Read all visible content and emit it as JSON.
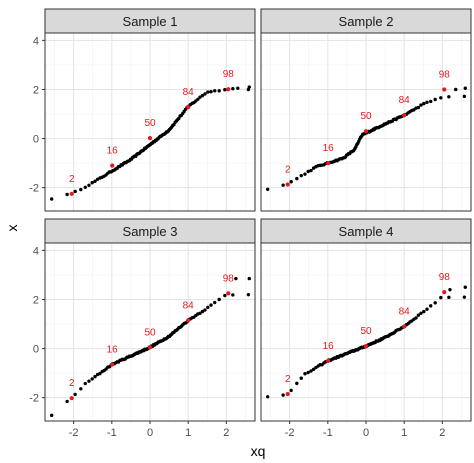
{
  "chart_data": {
    "type": "scatter",
    "subtype": "qq-plot-faceted",
    "xlabel": "xq",
    "ylabel": "x",
    "xlim": [
      -2.75,
      2.75
    ],
    "ylim": [
      -2.95,
      4.3
    ],
    "x_ticks": [
      -2,
      -1,
      0,
      1,
      2
    ],
    "y_ticks": [
      -2,
      0,
      2,
      4
    ],
    "grid": true,
    "facet_grid": {
      "rows": 2,
      "cols": 2
    },
    "point_color": "#000000",
    "highlight_color": "#e41a1c",
    "facets": [
      {
        "label": "Sample 1",
        "anchors": [
          [
            -2.6,
            -2.45
          ],
          [
            -2.05,
            -2.25
          ],
          [
            -1.5,
            -1.8
          ],
          [
            -0.5,
            -0.85
          ],
          [
            0.5,
            0.35
          ],
          [
            1.0,
            1.3
          ],
          [
            1.5,
            1.9
          ],
          [
            2.1,
            2.02
          ]
        ],
        "extra_points": [
          [
            2.3,
            2.05
          ],
          [
            2.6,
            2.1
          ]
        ],
        "highlights": [
          {
            "pct": "2",
            "x": -2.05,
            "y": -2.25
          },
          {
            "pct": "16",
            "x": -0.99,
            "y": -1.1
          },
          {
            "pct": "50",
            "x": 0.0,
            "y": 0.02
          },
          {
            "pct": "84",
            "x": 1.0,
            "y": 1.28
          },
          {
            "pct": "98",
            "x": 2.05,
            "y": 2.01
          }
        ]
      },
      {
        "label": "Sample 2",
        "anchors": [
          [
            -2.6,
            -2.05
          ],
          [
            -2.05,
            -1.85
          ],
          [
            -1.3,
            -1.15
          ],
          [
            -0.6,
            -0.8
          ],
          [
            -0.3,
            -0.45
          ],
          [
            -0.1,
            0.15
          ],
          [
            0.3,
            0.45
          ],
          [
            1.0,
            0.95
          ],
          [
            1.5,
            1.4
          ],
          [
            2.0,
            1.7
          ]
        ],
        "extra_points": [
          [
            2.35,
            2.0
          ],
          [
            2.6,
            2.05
          ]
        ],
        "highlights": [
          {
            "pct": "2",
            "x": -2.05,
            "y": -1.87
          },
          {
            "pct": "16",
            "x": -0.99,
            "y": -1.0
          },
          {
            "pct": "50",
            "x": 0.0,
            "y": 0.3
          },
          {
            "pct": "84",
            "x": 1.0,
            "y": 0.95
          },
          {
            "pct": "98",
            "x": 2.05,
            "y": 2.0
          }
        ]
      },
      {
        "label": "Sample 3",
        "anchors": [
          [
            -2.6,
            -2.75
          ],
          [
            -2.05,
            -2.0
          ],
          [
            -1.7,
            -1.45
          ],
          [
            -1.0,
            -0.65
          ],
          [
            -0.5,
            -0.3
          ],
          [
            0.0,
            0.05
          ],
          [
            0.5,
            0.5
          ],
          [
            1.0,
            1.15
          ],
          [
            1.5,
            1.65
          ],
          [
            2.0,
            2.2
          ]
        ],
        "extra_points": [
          [
            2.25,
            2.85
          ],
          [
            2.6,
            2.85
          ]
        ],
        "highlights": [
          {
            "pct": "2",
            "x": -2.05,
            "y": -2.02
          },
          {
            "pct": "16",
            "x": -0.99,
            "y": -0.65
          },
          {
            "pct": "50",
            "x": 0.0,
            "y": 0.05
          },
          {
            "pct": "84",
            "x": 1.0,
            "y": 1.15
          },
          {
            "pct": "98",
            "x": 2.05,
            "y": 2.25
          }
        ]
      },
      {
        "label": "Sample 4",
        "anchors": [
          [
            -2.6,
            -1.95
          ],
          [
            -2.05,
            -1.85
          ],
          [
            -1.6,
            -1.05
          ],
          [
            -1.0,
            -0.5
          ],
          [
            -0.5,
            -0.2
          ],
          [
            0.0,
            0.1
          ],
          [
            0.5,
            0.45
          ],
          [
            1.0,
            0.9
          ],
          [
            1.5,
            1.5
          ],
          [
            2.0,
            2.1
          ]
        ],
        "extra_points": [
          [
            2.2,
            2.4
          ],
          [
            2.6,
            2.5
          ]
        ],
        "highlights": [
          {
            "pct": "2",
            "x": -2.05,
            "y": -1.85
          },
          {
            "pct": "16",
            "x": -0.99,
            "y": -0.5
          },
          {
            "pct": "50",
            "x": 0.0,
            "y": 0.1
          },
          {
            "pct": "84",
            "x": 1.0,
            "y": 0.9
          },
          {
            "pct": "98",
            "x": 2.05,
            "y": 2.3
          }
        ]
      }
    ]
  }
}
